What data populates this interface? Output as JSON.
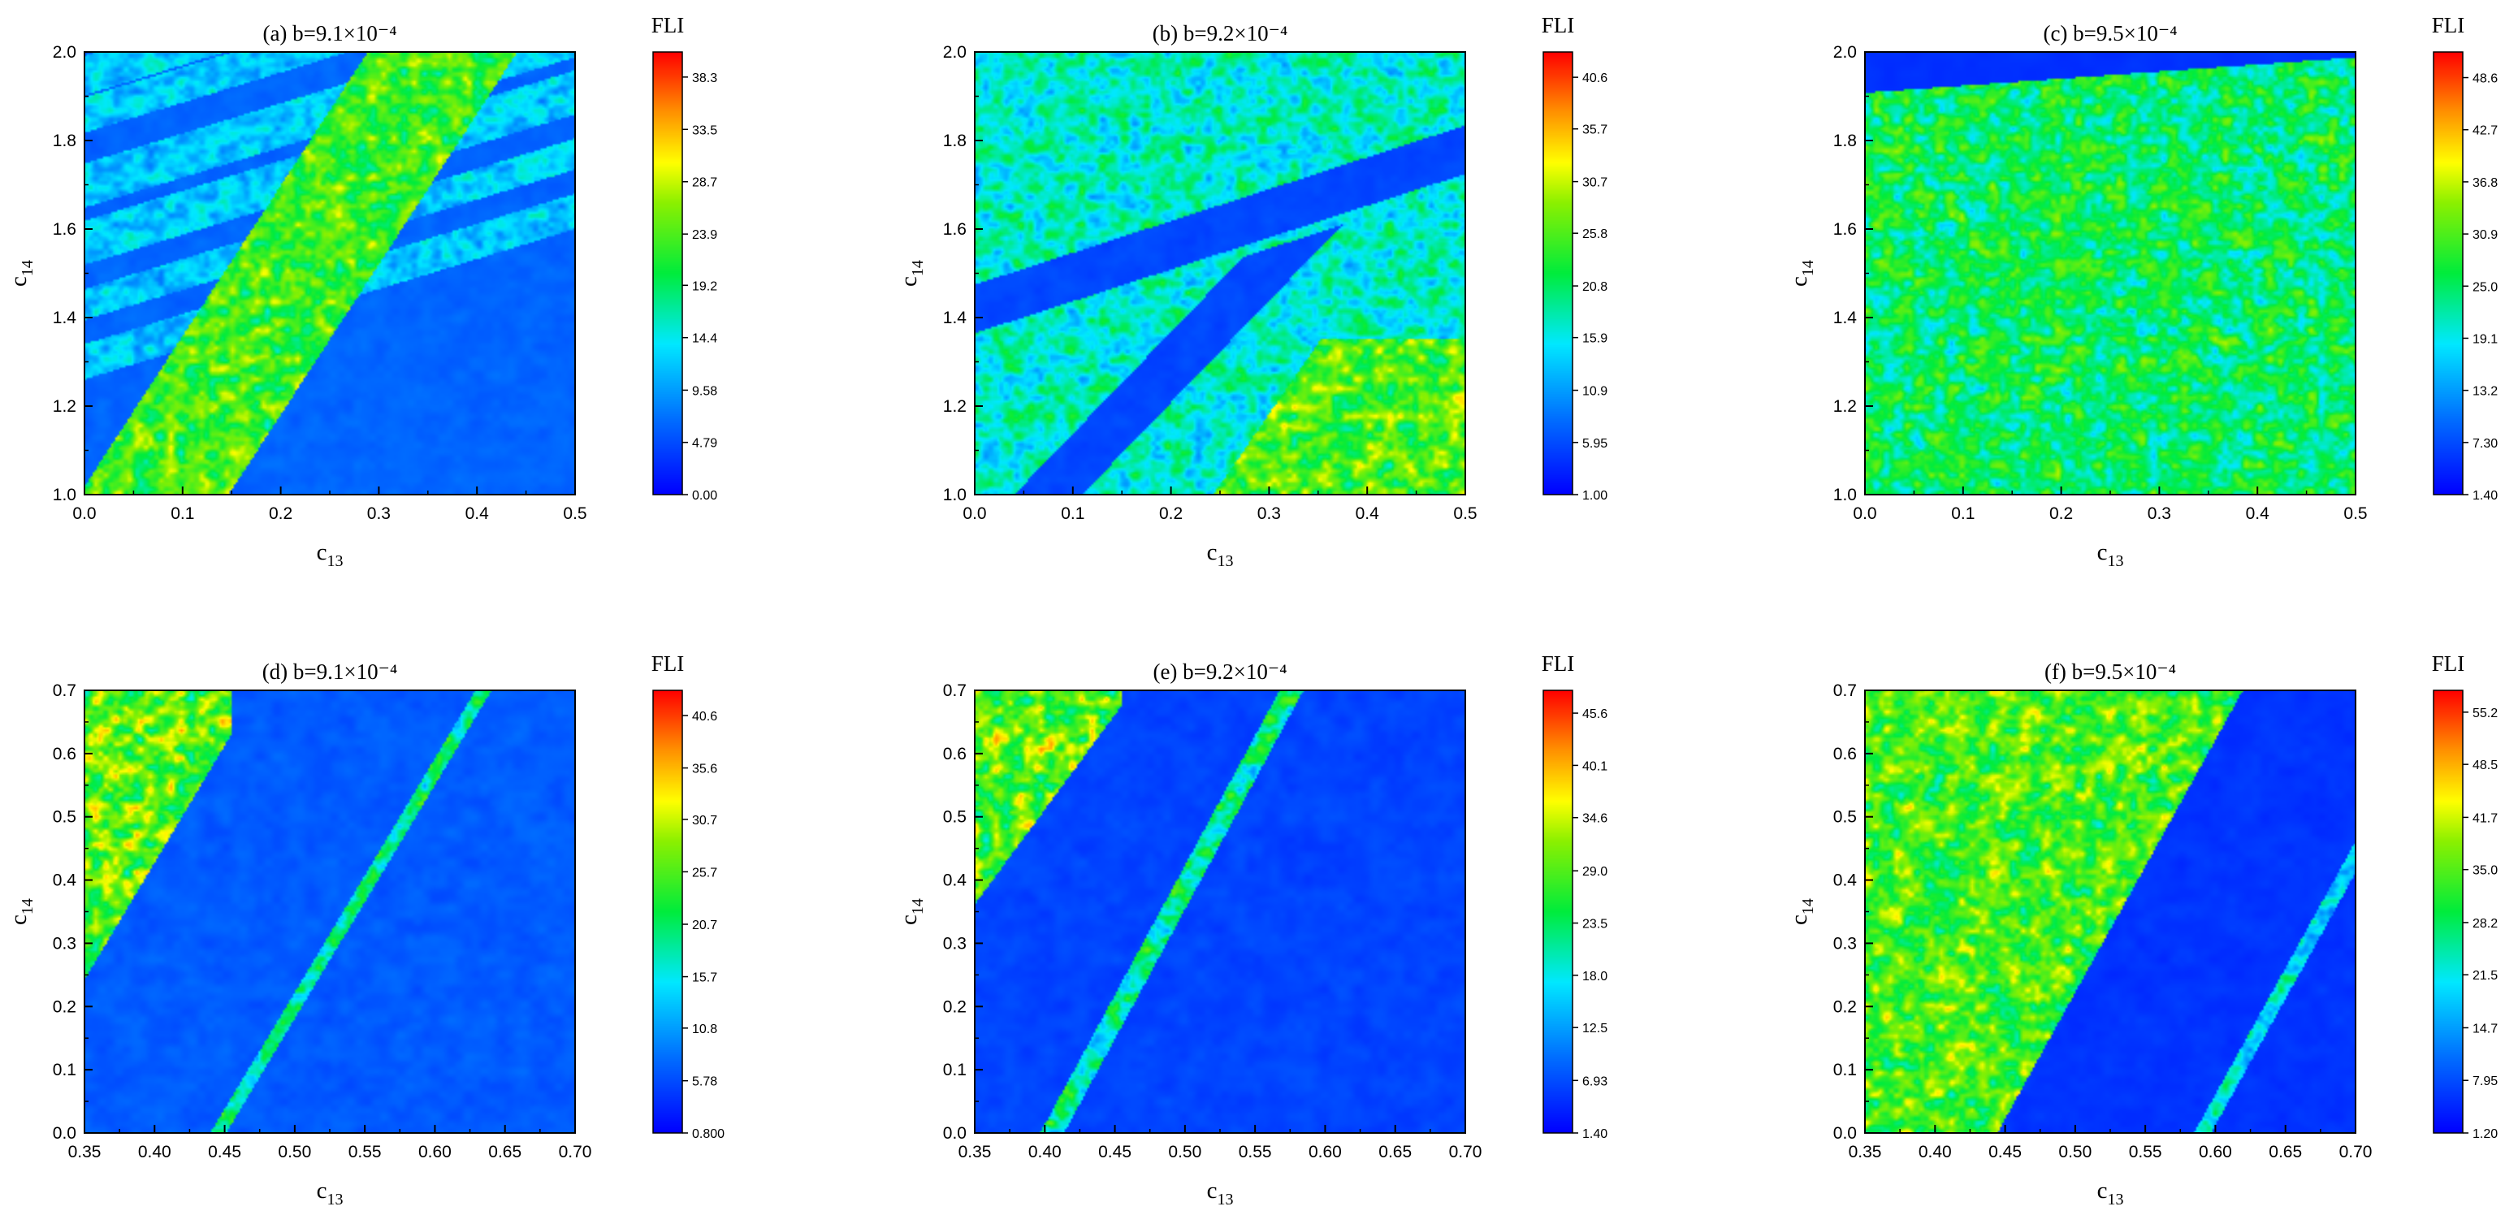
{
  "chart_data": [
    {
      "type": "heatmap",
      "panel": "a",
      "title": "(a) b=9.1×10⁻⁴",
      "xlabel": "c13",
      "ylabel": "c14",
      "xlim": [
        0.0,
        0.5
      ],
      "ylim": [
        1.0,
        2.0
      ],
      "x_ticks": [
        "0.0",
        "0.1",
        "0.2",
        "0.3",
        "0.4",
        "0.5"
      ],
      "y_ticks": [
        "1.0",
        "1.2",
        "1.4",
        "1.6",
        "1.8",
        "2.0"
      ],
      "colorbar": {
        "title": "FLI",
        "min": 0.0,
        "max": 40.6,
        "ticks": [
          "0.00",
          "4.79",
          "9.58",
          "14.4",
          "19.2",
          "23.9",
          "28.7",
          "33.5",
          "38.3"
        ]
      },
      "region_shown": "Mostly ordered (blue, FLI ≈ 3–10) with diagonal chaotic bands (FLI ≈ 10–20) and a chaotic zone (FLI ≈ 18–35) in the lower right"
    },
    {
      "type": "heatmap",
      "panel": "b",
      "title": "(b) b=9.2×10⁻⁴",
      "xlabel": "c13",
      "ylabel": "c14",
      "xlim": [
        0.0,
        0.5
      ],
      "ylim": [
        1.0,
        2.0
      ],
      "x_ticks": [
        "0.0",
        "0.1",
        "0.2",
        "0.3",
        "0.4",
        "0.5"
      ],
      "y_ticks": [
        "1.0",
        "1.2",
        "1.4",
        "1.6",
        "1.8",
        "2.0"
      ],
      "colorbar": {
        "title": "FLI",
        "min": 1.0,
        "max": 43.0,
        "ticks": [
          "1.00",
          "5.95",
          "10.9",
          "15.9",
          "20.8",
          "25.8",
          "30.7",
          "35.7",
          "40.6"
        ]
      },
      "region_shown": "Chaotic (FLI ≈ 12–25) upper region with a blue ordered diagonal band; chaotic zone (FLI ≈ 20–38) in the lower right"
    },
    {
      "type": "heatmap",
      "panel": "c",
      "title": "(c) b=9.5×10⁻⁴",
      "xlabel": "c13",
      "ylabel": "c14",
      "xlim": [
        0.0,
        0.5
      ],
      "ylim": [
        1.0,
        2.0
      ],
      "x_ticks": [
        "0.0",
        "0.1",
        "0.2",
        "0.3",
        "0.4",
        "0.5"
      ],
      "y_ticks": [
        "1.0",
        "1.2",
        "1.4",
        "1.6",
        "1.8",
        "2.0"
      ],
      "colorbar": {
        "title": "FLI",
        "min": 1.4,
        "max": 51.5,
        "ticks": [
          "1.40",
          "7.30",
          "13.2",
          "19.1",
          "25.0",
          "30.9",
          "36.8",
          "42.7",
          "48.6"
        ]
      },
      "region_shown": "Ordered strip (blue) at the top above c14 ≈ 1.92; the rest mostly chaotic (FLI ≈ 15–40)"
    },
    {
      "type": "heatmap",
      "panel": "d",
      "title": "(d) b=9.1×10⁻⁴",
      "xlabel": "c13",
      "ylabel": "c14",
      "xlim": [
        0.35,
        0.7
      ],
      "ylim": [
        0.0,
        0.7
      ],
      "x_ticks": [
        "0.35",
        "0.40",
        "0.45",
        "0.50",
        "0.55",
        "0.60",
        "0.65",
        "0.70"
      ],
      "y_ticks": [
        "0.0",
        "0.1",
        "0.2",
        "0.3",
        "0.4",
        "0.5",
        "0.6",
        "0.7"
      ],
      "colorbar": {
        "title": "FLI",
        "min": 0.8,
        "max": 43.0,
        "ticks": [
          "0.800",
          "5.78",
          "10.8",
          "15.7",
          "20.7",
          "25.7",
          "30.7",
          "35.6",
          "40.6"
        ]
      },
      "region_shown": "Chaotic triangle (FLI ≈ 15–40) in the upper left, a narrow chaotic diagonal stripe, the rest ordered (blue)"
    },
    {
      "type": "heatmap",
      "panel": "e",
      "title": "(e) b=9.2×10⁻⁴",
      "xlabel": "c13",
      "ylabel": "c14",
      "xlim": [
        0.35,
        0.7
      ],
      "ylim": [
        0.0,
        0.7
      ],
      "x_ticks": [
        "0.35",
        "0.40",
        "0.45",
        "0.50",
        "0.55",
        "0.60",
        "0.65",
        "0.70"
      ],
      "y_ticks": [
        "0.0",
        "0.1",
        "0.2",
        "0.3",
        "0.4",
        "0.5",
        "0.6",
        "0.7"
      ],
      "colorbar": {
        "title": "FLI",
        "min": 1.4,
        "max": 48.0,
        "ticks": [
          "1.40",
          "6.93",
          "12.5",
          "18.0",
          "23.5",
          "29.0",
          "34.6",
          "40.1",
          "45.6"
        ]
      },
      "region_shown": "Chaotic triangle (FLI ≈ 15–40) in the upper left, a chaotic diagonal stripe, the rest ordered (blue)"
    },
    {
      "type": "heatmap",
      "panel": "f",
      "title": "(f) b=9.5×10⁻⁴",
      "xlabel": "c13",
      "ylabel": "c14",
      "xlim": [
        0.35,
        0.7
      ],
      "ylim": [
        0.0,
        0.7
      ],
      "x_ticks": [
        "0.35",
        "0.40",
        "0.45",
        "0.50",
        "0.55",
        "0.60",
        "0.65",
        "0.70"
      ],
      "y_ticks": [
        "0.0",
        "0.1",
        "0.2",
        "0.3",
        "0.4",
        "0.5",
        "0.6",
        "0.7"
      ],
      "colorbar": {
        "title": "FLI",
        "min": 1.2,
        "max": 58.0,
        "ticks": [
          "1.20",
          "7.95",
          "14.7",
          "21.5",
          "28.2",
          "35.0",
          "41.7",
          "48.5",
          "55.2"
        ]
      },
      "region_shown": "Large chaotic region (FLI ≈ 20–40) on the left, an ordered (blue) band to the right with a narrow chaotic stripe"
    }
  ]
}
